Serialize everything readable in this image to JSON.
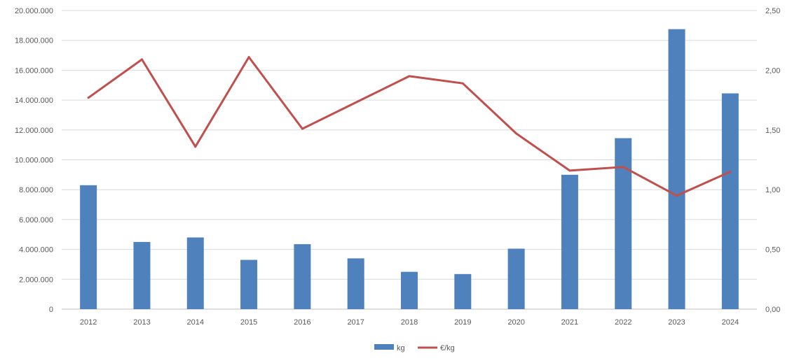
{
  "chart_data": {
    "type": "bar",
    "categories": [
      "2012",
      "2013",
      "2014",
      "2015",
      "2016",
      "2017",
      "2018",
      "2019",
      "2020",
      "2021",
      "2022",
      "2023",
      "2024"
    ],
    "series": [
      {
        "name": "kg",
        "type": "bar",
        "axis": "left",
        "color": "#4F81BD",
        "values": [
          8300000,
          4500000,
          4800000,
          3300000,
          4350000,
          3400000,
          2500000,
          2350000,
          4050000,
          9000000,
          11450000,
          18750000,
          14450000
        ]
      },
      {
        "name": "€/kg",
        "type": "line",
        "axis": "right",
        "color": "#C0504D",
        "values": [
          1.77,
          2.09,
          1.36,
          2.11,
          1.51,
          1.73,
          1.95,
          1.89,
          1.47,
          1.16,
          1.19,
          0.95,
          1.15
        ]
      }
    ],
    "y_left": {
      "lim": [
        0,
        20000000
      ],
      "ticks": [
        "0",
        "2.000.000",
        "4.000.000",
        "6.000.000",
        "8.000.000",
        "10.000.000",
        "12.000.000",
        "14.000.000",
        "16.000.000",
        "18.000.000",
        "20.000.000"
      ]
    },
    "y_right": {
      "lim": [
        0,
        2.5
      ],
      "ticks": [
        "0,00",
        "0,50",
        "1,00",
        "1,50",
        "2,00",
        "2,50"
      ]
    },
    "grid": true,
    "legend": "bottom-center",
    "title": "",
    "xlabel": "",
    "ylabel": ""
  }
}
